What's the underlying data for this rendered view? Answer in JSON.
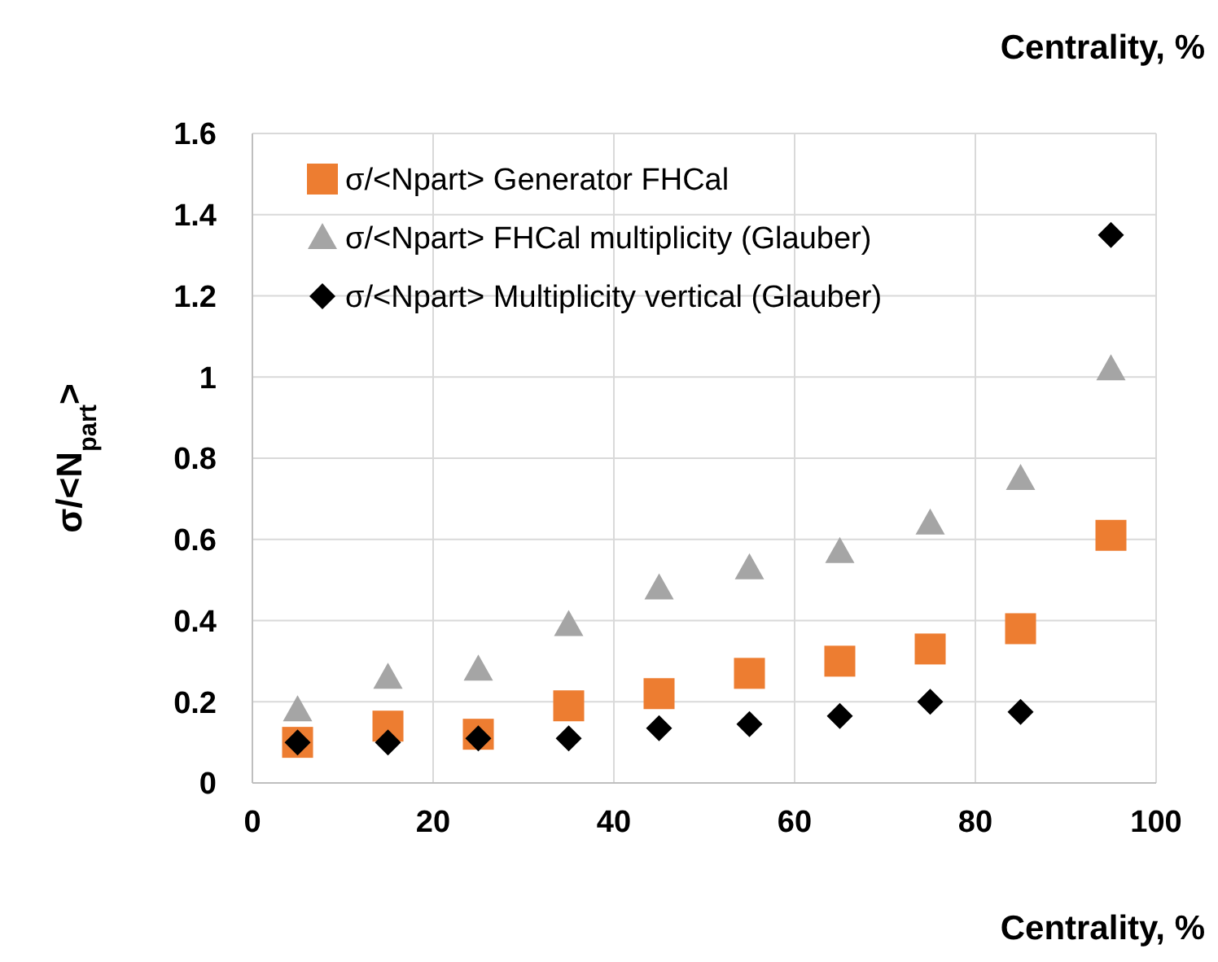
{
  "chart_data": {
    "type": "scatter",
    "xlabel": "Centrality, %",
    "ylabel": "σ/<N$_{part}$>",
    "annotations": [
      "Centrality, %"
    ],
    "x": [
      5,
      15,
      25,
      35,
      45,
      55,
      65,
      75,
      85,
      95
    ],
    "xlim": [
      0,
      100
    ],
    "xticks": [
      0,
      20,
      40,
      60,
      80,
      100
    ],
    "ylim": [
      0,
      1.6
    ],
    "yticks": [
      0,
      0.2,
      0.4,
      0.6,
      0.8,
      1,
      1.2,
      1.4,
      1.6
    ],
    "grid": true,
    "legend": "top left",
    "series": [
      {
        "name": "σ/<Npart> Generator FHCal",
        "color": "#ed7d31",
        "marker": "square",
        "values": [
          0.1,
          0.14,
          0.12,
          0.19,
          0.22,
          0.27,
          0.3,
          0.33,
          0.38,
          0.61
        ]
      },
      {
        "name": "σ/<Npart> FHCal multiplicity (Glauber)",
        "color": "#a5a5a5",
        "marker": "triangle",
        "values": [
          0.18,
          0.26,
          0.28,
          0.39,
          0.48,
          0.53,
          0.57,
          0.64,
          0.75,
          1.02
        ]
      },
      {
        "name": "σ/<Npart> Multiplicity vertical (Glauber)",
        "color": "#000000",
        "marker": "diamond",
        "values": [
          0.1,
          0.1,
          0.11,
          0.11,
          0.135,
          0.145,
          0.165,
          0.2,
          0.175,
          1.35
        ]
      }
    ]
  }
}
